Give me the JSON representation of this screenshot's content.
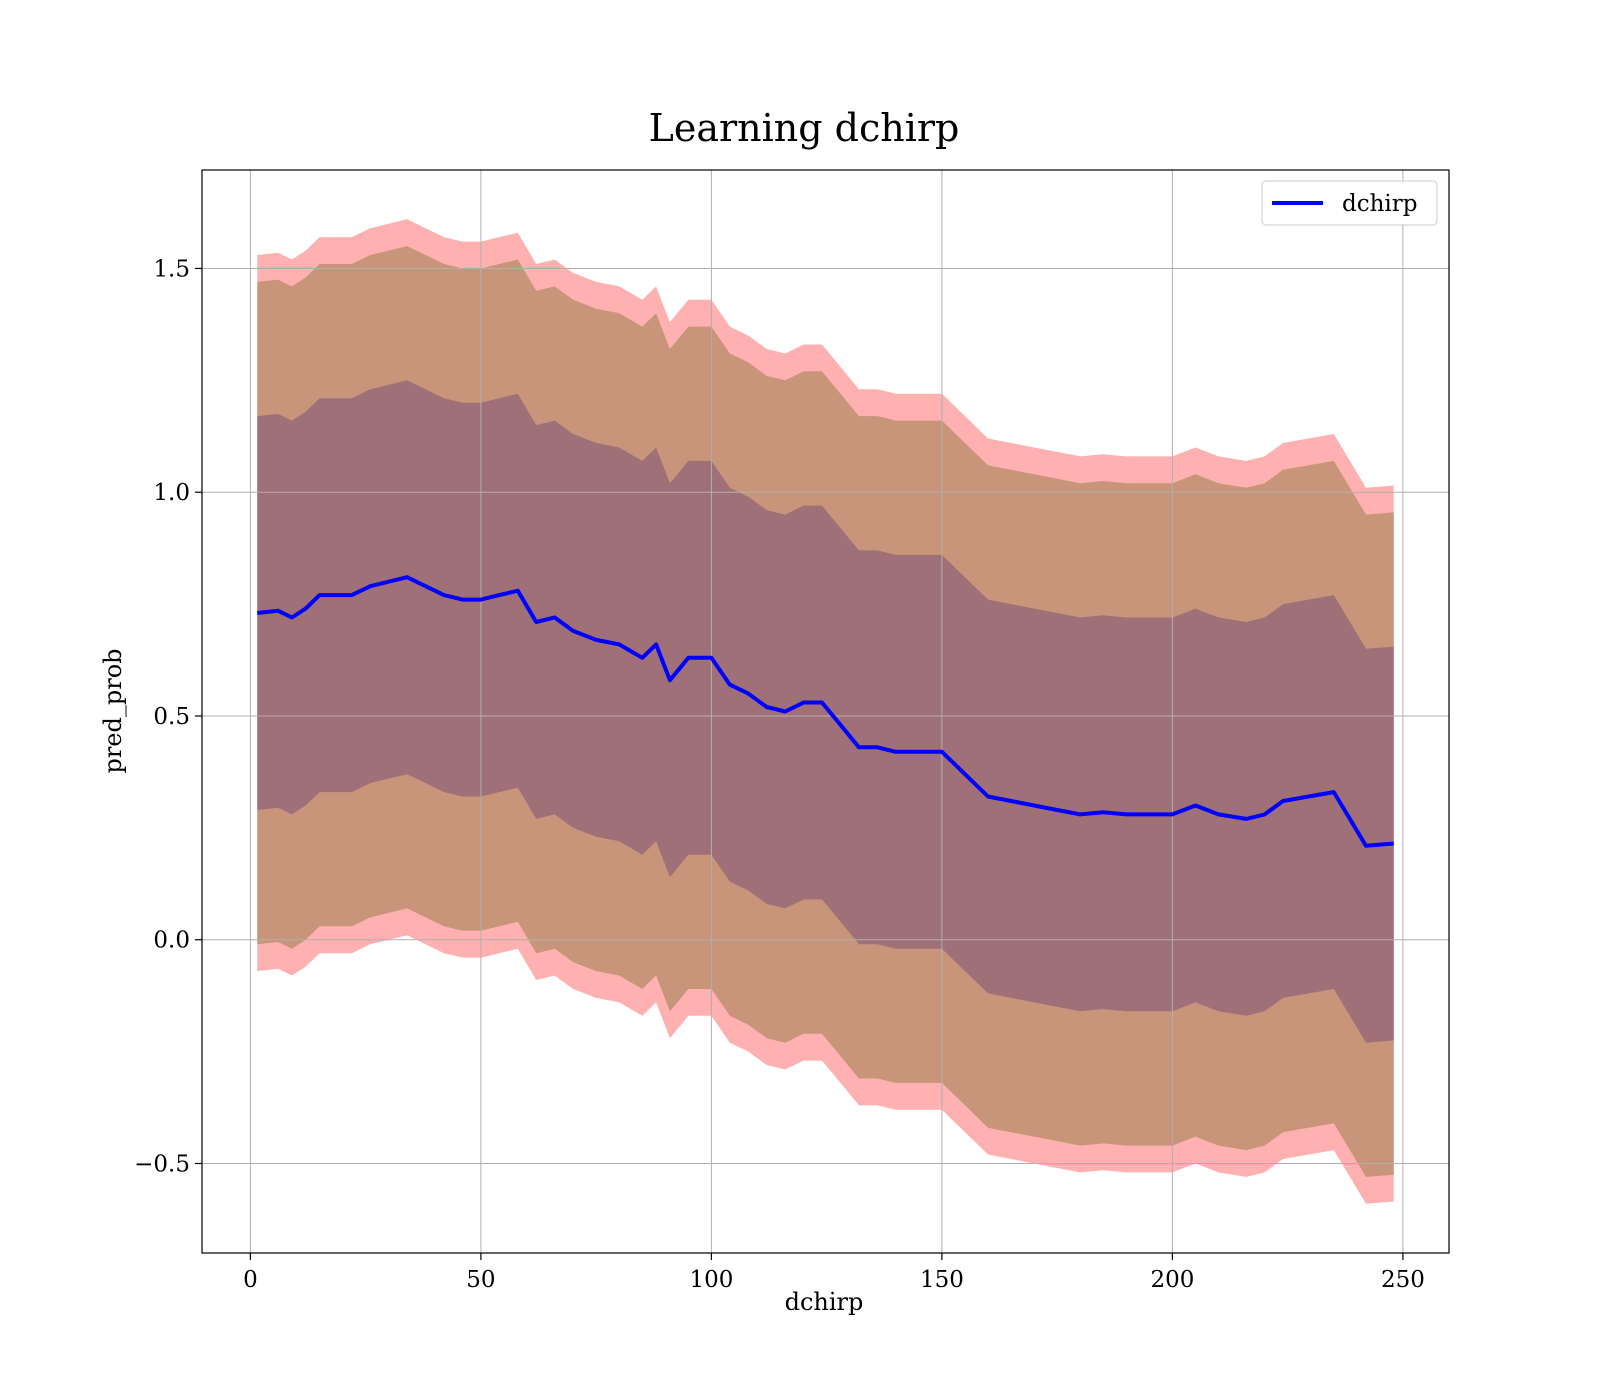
{
  "chart_data": {
    "type": "area",
    "title": "Learning dchirp",
    "xlabel": "dchirp",
    "ylabel": "pred_prob",
    "xlim": [
      -10.5,
      260
    ],
    "ylim": [
      -0.7,
      1.72
    ],
    "xticks": [
      0,
      50,
      100,
      150,
      200,
      250
    ],
    "xtick_labels": [
      "0",
      "50",
      "100",
      "150",
      "200",
      "250"
    ],
    "yticks": [
      -0.5,
      0.0,
      0.5,
      1.0,
      1.5
    ],
    "ytick_labels": [
      "−0.5",
      "0.0",
      "0.5",
      "1.0",
      "1.5"
    ],
    "grid": true,
    "legend": {
      "position": "top-right",
      "entries": [
        "dchirp"
      ]
    },
    "colors": {
      "line": "#0000ff",
      "outer_band": "#ffb0b0",
      "middle_band": "#c8957a",
      "inner_band": "#a07078",
      "grid": "#b0b0b0"
    },
    "x": [
      1.5,
      6,
      9,
      12,
      15,
      18,
      22,
      26,
      30,
      34,
      38,
      42,
      46,
      50,
      54,
      58,
      62,
      66,
      70,
      75,
      80,
      85,
      88,
      91,
      95,
      100,
      104,
      108,
      112,
      116,
      120,
      124,
      128,
      132,
      136,
      140,
      145,
      150,
      155,
      160,
      165,
      170,
      175,
      180,
      185,
      190,
      195,
      200,
      205,
      210,
      216,
      220,
      224,
      235,
      242,
      248
    ],
    "series": [
      {
        "name": "dchirp",
        "values": [
          0.73,
          0.735,
          0.72,
          0.74,
          0.77,
          0.77,
          0.77,
          0.79,
          0.8,
          0.81,
          0.79,
          0.77,
          0.76,
          0.76,
          0.77,
          0.78,
          0.71,
          0.72,
          0.69,
          0.67,
          0.66,
          0.63,
          0.66,
          0.58,
          0.63,
          0.63,
          0.57,
          0.55,
          0.52,
          0.51,
          0.53,
          0.53,
          0.48,
          0.43,
          0.43,
          0.42,
          0.42,
          0.42,
          0.37,
          0.32,
          0.31,
          0.3,
          0.29,
          0.28,
          0.285,
          0.28,
          0.28,
          0.28,
          0.3,
          0.28,
          0.27,
          0.28,
          0.31,
          0.33,
          0.21,
          0.215
        ]
      }
    ],
    "bands": [
      {
        "level": "outer",
        "offset": 0.8
      },
      {
        "level": "middle",
        "offset": 0.74
      },
      {
        "level": "inner",
        "offset": 0.44
      }
    ]
  }
}
